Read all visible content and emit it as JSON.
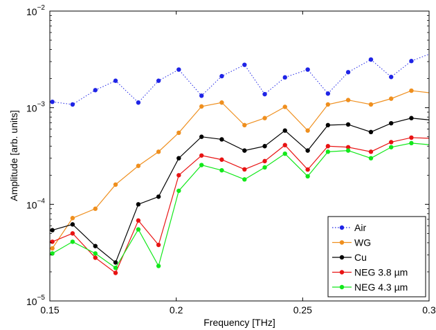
{
  "chart_data": {
    "type": "line",
    "xlabel": "Frequency [THz]",
    "ylabel": "Amplitude [arb. units]",
    "xlim": [
      0.15,
      0.3
    ],
    "ylim": [
      1e-05,
      0.01
    ],
    "yscale": "log",
    "grid": false,
    "legend_position": "bottom-right",
    "x_ticks": [
      {
        "value": 0.15,
        "label": "0.15"
      },
      {
        "value": 0.2,
        "label": "0.2"
      },
      {
        "value": 0.25,
        "label": "0.25"
      },
      {
        "value": 0.3,
        "label": "0.3"
      }
    ],
    "y_ticks": [
      {
        "value": 1e-05,
        "base": "10",
        "exp": "−5"
      },
      {
        "value": 0.0001,
        "base": "10",
        "exp": "−4"
      },
      {
        "value": 0.001,
        "base": "10",
        "exp": "−3"
      },
      {
        "value": 0.01,
        "base": "10",
        "exp": "−2"
      }
    ],
    "x": [
      0.151,
      0.159,
      0.168,
      0.176,
      0.185,
      0.193,
      0.201,
      0.21,
      0.218,
      0.227,
      0.235,
      0.243,
      0.252,
      0.26,
      0.268,
      0.277,
      0.285,
      0.293,
      0.302
    ],
    "series": [
      {
        "name": "Air",
        "color": "#1f24e6",
        "style": "dotted",
        "values": [
          0.00115,
          0.00108,
          0.00152,
          0.0019,
          0.00113,
          0.0019,
          0.00248,
          0.00133,
          0.00212,
          0.00278,
          0.00138,
          0.00206,
          0.00248,
          0.0014,
          0.00233,
          0.00315,
          0.00208,
          0.00304,
          0.00375
        ]
      },
      {
        "name": "WG",
        "color": "#ef8f1e",
        "style": "solid",
        "values": [
          3.5e-05,
          7.2e-05,
          9e-05,
          0.00016,
          0.00025,
          0.00035,
          0.00055,
          0.00103,
          0.00113,
          0.00066,
          0.00078,
          0.00102,
          0.00058,
          0.00108,
          0.0012,
          0.00108,
          0.00124,
          0.0015,
          0.00141
        ]
      },
      {
        "name": "Cu",
        "color": "#000000",
        "style": "solid",
        "values": [
          5.4e-05,
          6.2e-05,
          3.7e-05,
          2.5e-05,
          0.0001,
          0.00012,
          0.0003,
          0.0005,
          0.00047,
          0.00036,
          0.0004,
          0.00058,
          0.00036,
          0.00066,
          0.00067,
          0.00056,
          0.00069,
          0.00078,
          0.00074
        ]
      },
      {
        "name": "NEG 3.8 µm",
        "color": "#e81313",
        "style": "solid",
        "values": [
          4.1e-05,
          5e-05,
          2.8e-05,
          1.95e-05,
          6.8e-05,
          3.8e-05,
          0.0002,
          0.00032,
          0.00029,
          0.00023,
          0.00028,
          0.00041,
          0.000229,
          0.0004,
          0.00039,
          0.00035,
          0.00044,
          0.00049,
          0.00048
        ]
      },
      {
        "name": "NEG 4.3 µm",
        "color": "#12e81a",
        "style": "solid",
        "values": [
          3.1e-05,
          4.1e-05,
          3.1e-05,
          2.2e-05,
          5.5e-05,
          2.3e-05,
          0.000138,
          0.000255,
          0.000225,
          0.000181,
          0.000241,
          0.000334,
          0.000195,
          0.00035,
          0.00036,
          0.0003,
          0.00039,
          0.00043,
          0.00041
        ]
      }
    ]
  }
}
